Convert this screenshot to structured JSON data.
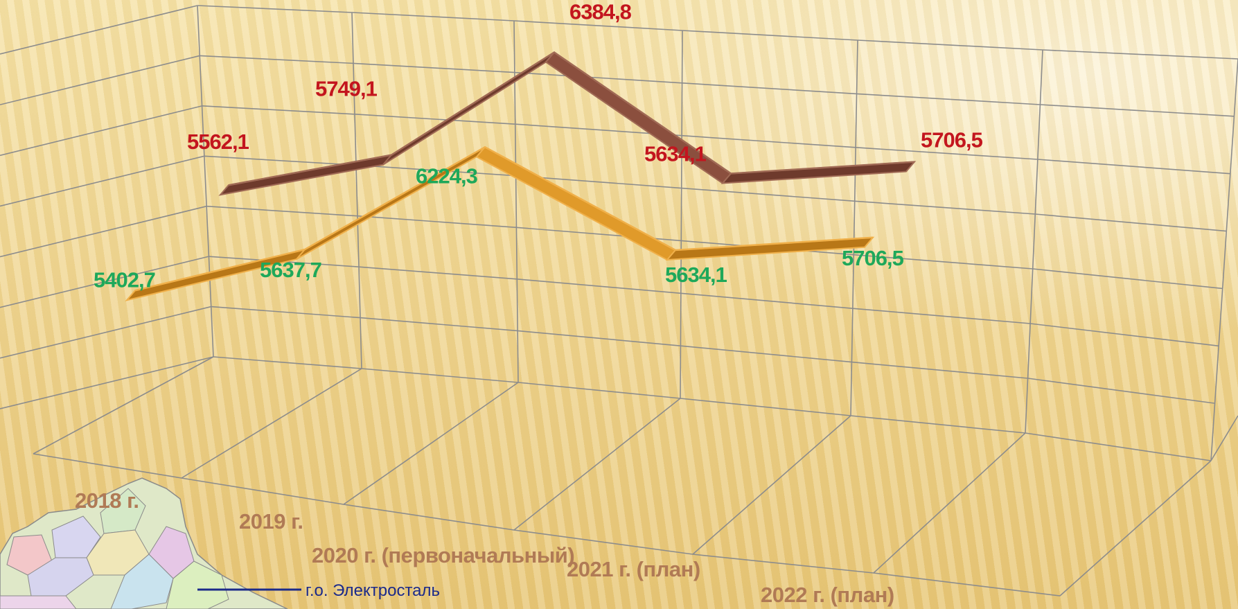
{
  "chart_data": {
    "type": "line",
    "categories": [
      "2018 г.",
      "2019 г.",
      "2020 г. (первоначальный)",
      "2021 г. (план)",
      "2022 г. (план)"
    ],
    "series": [
      {
        "values": [
          5562.1,
          5749.1,
          6384.8,
          5634.1,
          5706.5
        ],
        "labels": [
          "5562,1",
          "5749,1",
          "6384,8",
          "5634,1",
          "5706,5"
        ],
        "color": "#8b4f3e",
        "label_color": "#c3151e"
      },
      {
        "values": [
          5402.7,
          5637.7,
          6224.3,
          5634.1,
          5706.5
        ],
        "labels": [
          "5402,7",
          "5637,7",
          "6224,3",
          "5634,1",
          "5706,5"
        ],
        "color": "#e09a2a",
        "label_color": "#1ea85a"
      }
    ],
    "legend": {
      "entries": [
        "г.о. Электросталь"
      ],
      "line_color": "#1b2a8a"
    },
    "style": "3d",
    "grid": true
  }
}
